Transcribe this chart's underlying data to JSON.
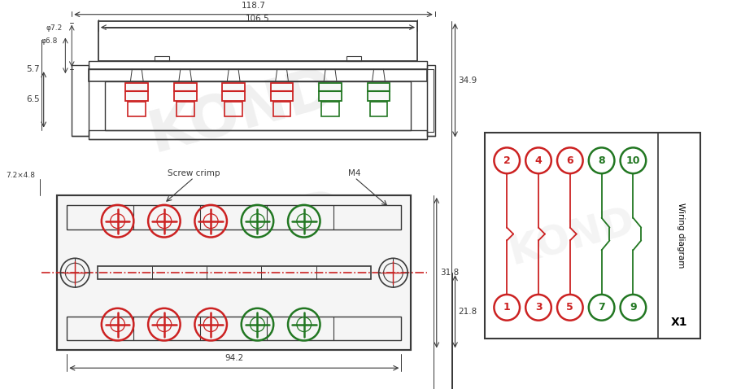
{
  "bg_color": "#ffffff",
  "line_color": "#3a3a3a",
  "dim_color": "#3a3a3a",
  "red_color": "#cc2222",
  "green_color": "#227722",
  "dim_118_7": "118.7",
  "dim_106_5": "106.5",
  "dim_34_9": "34.9",
  "dim_5_7": "5.7",
  "dim_6_5": "6.5",
  "dim_phi6_8": "φ6.8",
  "dim_phi7_2": "φ7.2",
  "dim_7_2x4_8": "7.2×4.8",
  "dim_94_2": "94.2",
  "dim_31_8": "31.8",
  "dim_21_8": "21.8",
  "dim_M4": "M4",
  "screw_crimp": "Screw crimp",
  "wiring_diagram": "Wiring diagram",
  "X1_label": "X1",
  "font_size_dim": 7.5
}
